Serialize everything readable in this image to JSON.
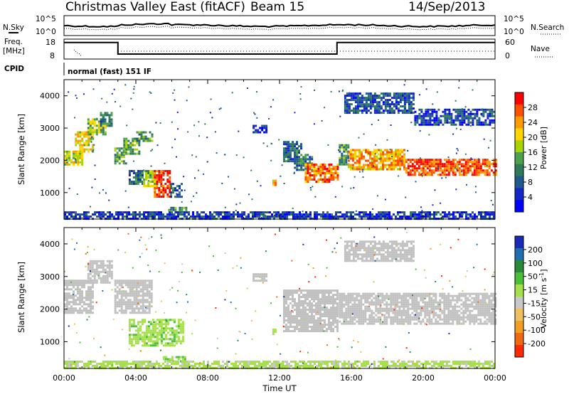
{
  "header": {
    "title": "Christmas Valley East (fitACF)",
    "beam": "Beam 15",
    "date": "14/Sep/2013"
  },
  "noise_panel": {
    "left_label": "N.Sky",
    "right_label": "N.Search",
    "left_ticks": [
      "10^5",
      "10^0"
    ],
    "right_ticks": [
      "10^5",
      "10^0"
    ]
  },
  "freq_panel": {
    "left_label_line1": "Freq.",
    "left_label_line2": "[MHz]",
    "right_label": "Nave",
    "left_ticks": [
      "18",
      "8"
    ],
    "right_ticks": [
      "60",
      "0"
    ],
    "freq_steps": [
      {
        "start_h": 0,
        "end_h": 3,
        "mhz": 16
      },
      {
        "start_h": 3,
        "end_h": 15.2,
        "mhz": 9
      },
      {
        "start_h": 15.2,
        "end_h": 24,
        "mhz": 16
      }
    ]
  },
  "cpid_panel": {
    "label": "CPID",
    "text": "normal (fast) 151 IF"
  },
  "power_panel": {
    "ylabel": "Slant Range [km]",
    "colorbar_label": "Power [dB]",
    "colorbar_ticks": [
      "28",
      "24",
      "20",
      "16",
      "12",
      "8",
      "4"
    ],
    "colorbar_colors": [
      "#ff0000",
      "#ff5000",
      "#ff9a00",
      "#ffd400",
      "#a8d400",
      "#4da04d",
      "#2f7a5a",
      "#205a8c",
      "#1428c8",
      "#0000ff"
    ]
  },
  "velocity_panel": {
    "ylabel": "Slant Range [km]",
    "colorbar_label": "Velocity [m s",
    "colorbar_label_sup": "-1",
    "colorbar_label_end": "]",
    "colorbar_ticks": [
      "200",
      "100",
      "50",
      "15",
      "-15",
      "-50",
      "-100",
      "-200"
    ],
    "colorbar_colors": [
      "#1a2ab8",
      "#1f6fb0",
      "#2a8a3a",
      "#4cbf3a",
      "#a6e04d",
      "#c8c8c8",
      "#f0c060",
      "#f0a020",
      "#f06a10",
      "#ff2a00"
    ],
    "ground_scatter_color": "#c0c0c0"
  },
  "time_axis": {
    "label": "Time UT",
    "ticks": [
      "00:00",
      "04:00",
      "08:00",
      "12:00",
      "16:00",
      "20:00",
      "00:00"
    ]
  },
  "chart_data": [
    {
      "type": "heatmap",
      "title": "Power",
      "xlabel": "Time UT",
      "ylabel": "Slant Range [km]",
      "x_range_hours": [
        0,
        24
      ],
      "ylim": [
        180,
        4500
      ],
      "y_ticks": [
        1000,
        2000,
        3000,
        4000
      ],
      "colorbar": {
        "label": "Power [dB]",
        "range": [
          0,
          30
        ],
        "ticks": [
          4,
          8,
          12,
          16,
          20,
          24,
          28
        ]
      },
      "regions": [
        {
          "t0": 0.0,
          "t1": 1.0,
          "r0": 1900,
          "r1": 2300,
          "level": 17
        },
        {
          "t0": 0.6,
          "t1": 1.6,
          "r0": 2300,
          "r1": 2900,
          "level": 19
        },
        {
          "t0": 1.3,
          "t1": 2.3,
          "r0": 2800,
          "r1": 3300,
          "level": 16
        },
        {
          "t0": 2.0,
          "t1": 2.7,
          "r0": 3100,
          "r1": 3500,
          "level": 10
        },
        {
          "t0": 2.8,
          "t1": 3.4,
          "r0": 1900,
          "r1": 2400,
          "level": 12
        },
        {
          "t0": 3.3,
          "t1": 4.2,
          "r0": 2200,
          "r1": 2700,
          "level": 14
        },
        {
          "t0": 3.9,
          "t1": 4.9,
          "r0": 2600,
          "r1": 2900,
          "level": 12
        },
        {
          "t0": 3.6,
          "t1": 4.4,
          "r0": 1300,
          "r1": 1700,
          "level": 9
        },
        {
          "t0": 4.4,
          "t1": 5.0,
          "r0": 1200,
          "r1": 1700,
          "level": 16
        },
        {
          "t0": 5.0,
          "t1": 5.9,
          "r0": 900,
          "r1": 1700,
          "level": 27
        },
        {
          "t0": 5.9,
          "t1": 6.6,
          "r0": 900,
          "r1": 1300,
          "level": 8
        },
        {
          "t0": 5.8,
          "t1": 6.8,
          "r0": 380,
          "r1": 560,
          "level": 11
        },
        {
          "t0": 10.5,
          "t1": 11.3,
          "r0": 2900,
          "r1": 3100,
          "level": 6
        },
        {
          "t0": 11.6,
          "t1": 11.8,
          "r0": 1250,
          "r1": 1400,
          "level": 22
        },
        {
          "t0": 12.2,
          "t1": 13.2,
          "r0": 2000,
          "r1": 2600,
          "level": 8
        },
        {
          "t0": 12.8,
          "t1": 13.8,
          "r0": 1700,
          "r1": 2200,
          "level": 10
        },
        {
          "t0": 13.4,
          "t1": 15.2,
          "r0": 1350,
          "r1": 1900,
          "level": 24
        },
        {
          "t0": 15.3,
          "t1": 15.8,
          "r0": 1900,
          "r1": 2500,
          "level": 12
        },
        {
          "t0": 15.8,
          "t1": 19.0,
          "r0": 1750,
          "r1": 2350,
          "level": 22
        },
        {
          "t0": 19.0,
          "t1": 24.0,
          "r0": 1550,
          "r1": 2050,
          "level": 26
        },
        {
          "t0": 15.6,
          "t1": 19.5,
          "r0": 3500,
          "r1": 4100,
          "level": 7
        },
        {
          "t0": 19.5,
          "t1": 24.0,
          "r0": 3100,
          "r1": 3600,
          "level": 6
        },
        {
          "t0": 0.0,
          "t1": 24.0,
          "r0": 180,
          "r1": 420,
          "level": 5
        }
      ]
    },
    {
      "type": "heatmap",
      "title": "Velocity",
      "xlabel": "Time UT",
      "ylabel": "Slant Range [km]",
      "x_range_hours": [
        0,
        24
      ],
      "ylim": [
        180,
        4500
      ],
      "y_ticks": [
        1000,
        2000,
        3000,
        4000
      ],
      "colorbar": {
        "label": "Velocity [m s-1]",
        "range": [
          -250,
          250
        ],
        "ticks": [
          200,
          100,
          50,
          15,
          -15,
          -50,
          -100,
          -200
        ]
      },
      "ground_scatter_regions": [
        {
          "t0": 0.0,
          "t1": 1.6,
          "r0": 1900,
          "r1": 2900
        },
        {
          "t0": 1.3,
          "t1": 2.7,
          "r0": 2800,
          "r1": 3500
        },
        {
          "t0": 2.8,
          "t1": 4.9,
          "r0": 1900,
          "r1": 2900
        },
        {
          "t0": 10.5,
          "t1": 11.3,
          "r0": 2900,
          "r1": 3100
        },
        {
          "t0": 12.2,
          "t1": 15.2,
          "r0": 1350,
          "r1": 2600
        },
        {
          "t0": 15.3,
          "t1": 24.0,
          "r0": 1550,
          "r1": 2500
        },
        {
          "t0": 15.6,
          "t1": 19.5,
          "r0": 3500,
          "r1": 4100
        }
      ],
      "ionospheric_regions": [
        {
          "t0": 3.6,
          "t1": 6.6,
          "r0": 900,
          "r1": 1700,
          "velocity": 30
        },
        {
          "t0": 5.5,
          "t1": 6.8,
          "r0": 380,
          "r1": 560,
          "velocity": 40
        },
        {
          "t0": 11.6,
          "t1": 11.8,
          "r0": 1250,
          "r1": 1400,
          "velocity": 25
        },
        {
          "t0": 0.0,
          "t1": 24.0,
          "r0": 180,
          "r1": 420,
          "velocity": 20
        }
      ]
    }
  ]
}
